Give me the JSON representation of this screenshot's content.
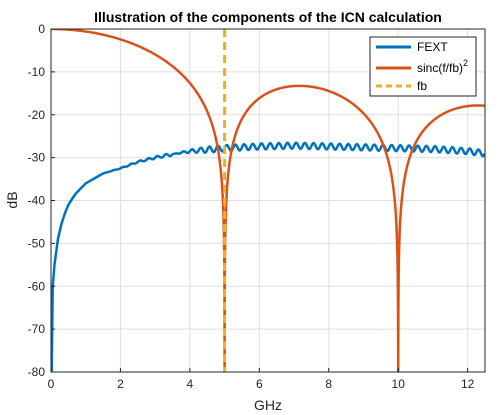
{
  "chart_data": {
    "type": "line",
    "title": "Illustration of the components of the ICN calculation",
    "xlabel": "GHz",
    "ylabel": "dB",
    "xlim": [
      0,
      12.5
    ],
    "ylim": [
      -80,
      0
    ],
    "xticks": [
      0,
      2,
      4,
      6,
      8,
      10,
      12
    ],
    "xtick_labels": [
      "0",
      "2",
      "4",
      "6",
      "8",
      "10",
      "12"
    ],
    "yticks": [
      0,
      -10,
      -20,
      -30,
      -40,
      -50,
      -60,
      -70,
      -80
    ],
    "ytick_labels": [
      "0",
      "-10",
      "-20",
      "-30",
      "-40",
      "-50",
      "-60",
      "-70",
      "-80"
    ],
    "grid": true,
    "legend_position": "top-right",
    "fb": 5,
    "series": [
      {
        "name": "FEXT",
        "color": "#0072BD",
        "style": "solid",
        "x": [
          0.02,
          0.05,
          0.1,
          0.2,
          0.3,
          0.4,
          0.5,
          0.7,
          1,
          1.5,
          2,
          2.5,
          3,
          3.5,
          4,
          5,
          6,
          7,
          8,
          9,
          10,
          11,
          12,
          12.5
        ],
        "y": [
          -80,
          -60,
          -55,
          -49,
          -45.5,
          -43,
          -41,
          -38.5,
          -36,
          -33.7,
          -32.5,
          -31,
          -30,
          -29.2,
          -28.5,
          -27.8,
          -27.4,
          -27.2,
          -27.4,
          -27.6,
          -27.8,
          -28.0,
          -28.5,
          -29
        ],
        "ripple_start": 3.5,
        "ripple_period": 0.25,
        "ripple_amplitude": 0.7
      },
      {
        "name": "sinc(f/fb)",
        "name_superscript": "2",
        "color": "#D95319",
        "style": "solid",
        "formula": "20*log10(abs(sinc(f/fb)))",
        "floor": -80,
        "x_range": [
          0,
          12.5
        ]
      },
      {
        "name": "fb",
        "color": "#EDB120",
        "style": "dashed",
        "x": [
          5,
          5
        ],
        "y": [
          0,
          -80
        ]
      }
    ]
  }
}
